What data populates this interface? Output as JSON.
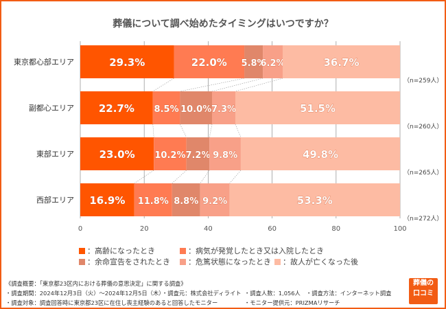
{
  "chart_data": {
    "type": "bar",
    "orientation": "horizontal-stacked",
    "title": "葬儀について調べ始めたタイミングはいつですか？",
    "categories": [
      "東京都心部エリア",
      "副都心エリア",
      "東部エリア",
      "西部エリア"
    ],
    "sample_sizes": [
      "（n=259人）",
      "（n=260人）",
      "（n=265人）",
      "（n=272人）"
    ],
    "series": [
      {
        "name": "高齢になったとき",
        "color": "#FF5500",
        "values": [
          29.3,
          22.7,
          23.0,
          16.9
        ]
      },
      {
        "name": "病気が発覚したとき又は入院したとき",
        "color": "#FF7B52",
        "values": [
          22.0,
          8.5,
          10.2,
          11.8
        ]
      },
      {
        "name": "余命宣告をされたとき",
        "color": "#E0876A",
        "values": [
          5.8,
          10.0,
          7.2,
          8.8
        ]
      },
      {
        "name": "危篤状態になったとき",
        "color": "#F8A088",
        "values": [
          6.2,
          7.3,
          9.8,
          9.2
        ]
      },
      {
        "name": "故人が亡くなった後",
        "color": "#FDBBA3",
        "values": [
          36.7,
          51.5,
          49.8,
          53.3
        ]
      }
    ],
    "xlim": [
      0,
      100
    ],
    "xticks": [
      0,
      20,
      40,
      60,
      80,
      100
    ],
    "grid": true,
    "legend_position": "bottom",
    "value_suffix": "%"
  },
  "legend_prefix": "：",
  "footer": {
    "line1": "《調査概要：「東京都23区内における葬儀の意思決定」に関する調査》",
    "period": "・調査期間：2024年12月3日（火）～2024年12月5日（木）",
    "source": "・調査元：株式会社ディライト",
    "count": "・調査人数：1,056人",
    "method": "・調査方法：インターネット調査",
    "target": "・調査対象：調査回答時に東京都23区に在住し喪主経験のあると回答したモニター",
    "provider": "・モニター提供元：PRIZMAリサーチ"
  },
  "logo": {
    "text1": "葬儀の",
    "text2": "口コミ"
  },
  "colors": {
    "frame": "#F25C14"
  }
}
